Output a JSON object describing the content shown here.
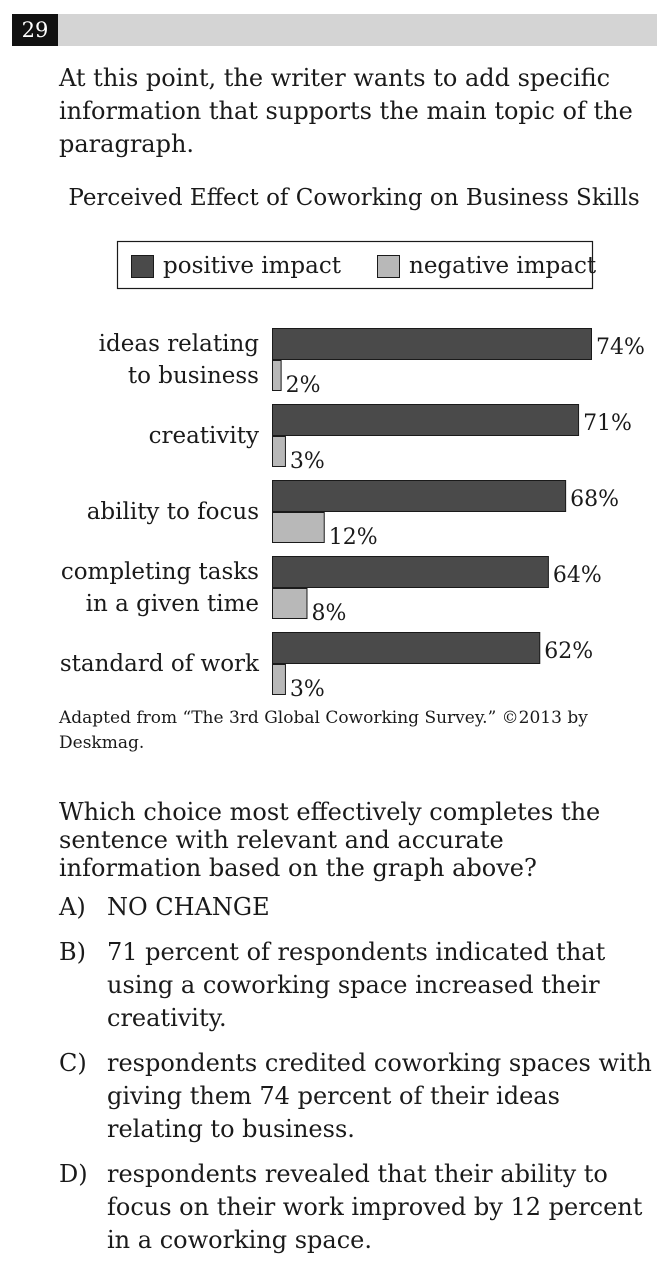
{
  "question": {
    "number": "29",
    "intro": "At this point, the writer wants to add specific information that supports the main topic of the paragraph.",
    "prompt": "Which choice most effectively completes the sentence with relevant and accurate information based on the graph above?",
    "choices": [
      {
        "letter": "A)",
        "text": "NO CHANGE"
      },
      {
        "letter": "B)",
        "text": "71 percent of respondents indicated that using a coworking space increased their creativity."
      },
      {
        "letter": "C)",
        "text": "respondents credited coworking spaces with giving them 74 percent of their ideas relating to business."
      },
      {
        "letter": "D)",
        "text": "respondents revealed that their ability to focus on their work improved by 12 percent in a coworking space."
      }
    ],
    "source": "Adapted from “The 3rd Global Coworking Survey.” ©2013 by Deskmag."
  },
  "chart_data": {
    "type": "bar",
    "orientation": "horizontal",
    "title": "Perceived Effect of Coworking on Business Skills",
    "categories": [
      [
        "ideas relating",
        "to business"
      ],
      [
        "creativity"
      ],
      [
        "ability to focus"
      ],
      [
        "completing tasks",
        "in a given time"
      ],
      [
        "standard of work"
      ]
    ],
    "series": [
      {
        "name": "positive impact",
        "values": [
          74,
          71,
          68,
          64,
          62
        ],
        "color": "#4a4a4a"
      },
      {
        "name": "negative impact",
        "values": [
          2,
          3,
          12,
          8,
          3
        ],
        "color": "#b8b8b8"
      }
    ],
    "value_suffix": "%",
    "xlim": [
      0,
      74
    ],
    "grid": false,
    "legend_position": "top"
  }
}
